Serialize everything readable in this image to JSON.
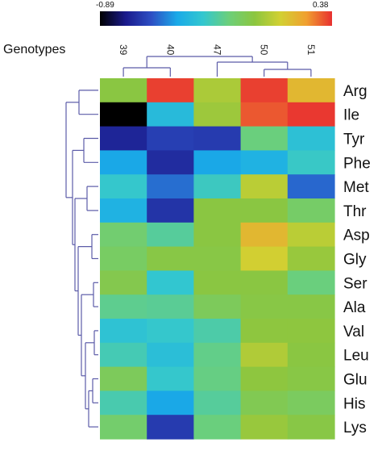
{
  "chart_data": {
    "type": "heatmap",
    "x_title": "Genotypes",
    "columns": [
      "39",
      "40",
      "47",
      "50",
      "51"
    ],
    "rows": [
      "Arg",
      "Ile",
      "Tyr",
      "Phe",
      "Met",
      "Thr",
      "Asp",
      "Gly",
      "Ser",
      "Ala",
      "Val",
      "Leu",
      "Glu",
      "His",
      "Lys"
    ],
    "values": [
      [
        -0.05,
        0.36,
        0.02,
        0.36,
        0.17
      ],
      [
        -0.89,
        -0.39,
        -0.01,
        0.33,
        0.37
      ],
      [
        -0.72,
        -0.65,
        -0.66,
        -0.19,
        -0.36
      ],
      [
        -0.47,
        -0.7,
        -0.47,
        -0.43,
        -0.31
      ],
      [
        -0.32,
        -0.56,
        -0.3,
        0.05,
        -0.57
      ],
      [
        -0.43,
        -0.68,
        -0.05,
        -0.05,
        -0.14
      ],
      [
        -0.16,
        -0.24,
        -0.05,
        0.17,
        0.05
      ],
      [
        -0.13,
        -0.06,
        -0.06,
        0.1,
        -0.02
      ],
      [
        -0.08,
        -0.33,
        -0.05,
        -0.05,
        -0.19
      ],
      [
        -0.22,
        -0.23,
        -0.11,
        -0.06,
        -0.06
      ],
      [
        -0.35,
        -0.32,
        -0.26,
        -0.04,
        -0.04
      ],
      [
        -0.28,
        -0.37,
        -0.21,
        0.03,
        -0.05
      ],
      [
        -0.11,
        -0.32,
        -0.2,
        -0.04,
        -0.06
      ],
      [
        -0.27,
        -0.47,
        -0.24,
        -0.09,
        -0.12
      ],
      [
        -0.15,
        -0.66,
        -0.19,
        -0.02,
        -0.06
      ]
    ],
    "colorbar": {
      "min": -0.89,
      "max": 0.38,
      "min_label": "-0.89",
      "max_label": "0.38",
      "colors": [
        "#000000",
        "#1a1a8c",
        "#2d4fc4",
        "#1aaae8",
        "#33c7cf",
        "#6ccf7a",
        "#8cc63f",
        "#d2d032",
        "#f0a030",
        "#e83030"
      ]
    },
    "dendrograms": {
      "rows": "left",
      "columns": "top",
      "line_color": "#5b5ba8"
    }
  }
}
